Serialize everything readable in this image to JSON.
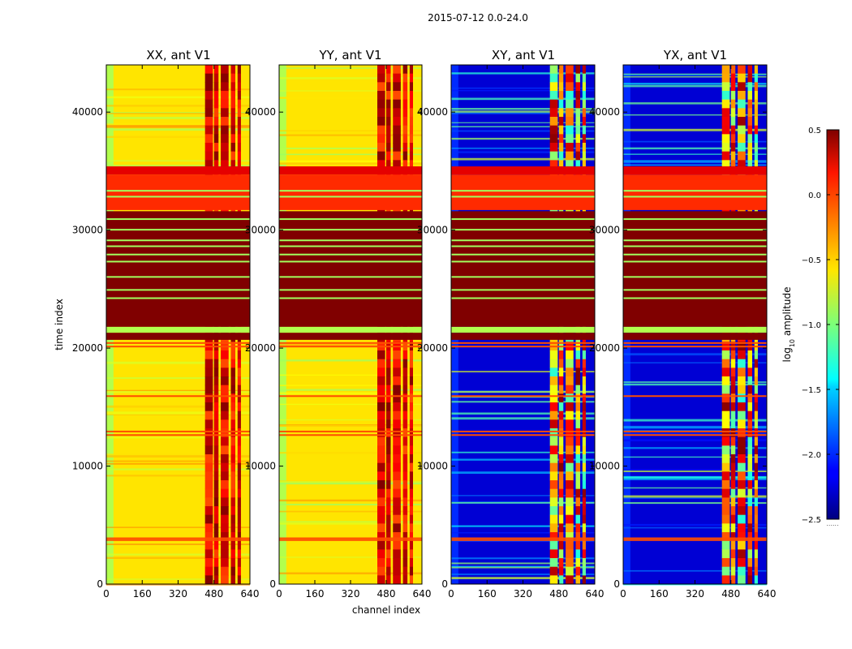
{
  "figure": {
    "suptitle": "2015-07-12 0.0-24.0",
    "xlabel": "channel index",
    "ylabel": "time index"
  },
  "chart_data": {
    "type": "heatmap",
    "colormap": "jet",
    "x_ticks": [
      0,
      160,
      320,
      480,
      640
    ],
    "y_ticks": [
      0,
      10000,
      20000,
      30000,
      40000
    ],
    "xlim": [
      0,
      640
    ],
    "ylim": [
      0,
      44000
    ],
    "panels": [
      {
        "title": "XX, ant V1",
        "kind": "parallel"
      },
      {
        "title": "YY, ant V1",
        "kind": "parallel"
      },
      {
        "title": "XY, ant V1",
        "kind": "cross"
      },
      {
        "title": "YX, ant V1",
        "kind": "cross"
      }
    ],
    "time_bands": [
      {
        "from": 34700,
        "to": 35400,
        "level": 0.2
      },
      {
        "from": 31700,
        "to": 34700,
        "level": 0.0
      },
      {
        "from": 21800,
        "to": 31600,
        "level": 0.5
      },
      {
        "from": 21300,
        "to": 21800,
        "level": -0.85
      },
      {
        "from": 20700,
        "to": 21300,
        "level": 0.5
      }
    ],
    "band_lines": [
      24300,
      25000,
      26100,
      27400,
      28000,
      28700,
      29200,
      30100,
      31000,
      32900,
      33400
    ],
    "rfi_columns": [
      {
        "from": 440,
        "to": 475
      },
      {
        "from": 480,
        "to": 500
      },
      {
        "from": 510,
        "to": 545
      },
      {
        "from": 555,
        "to": 575
      },
      {
        "from": 585,
        "to": 600
      }
    ],
    "colorbar": {
      "label": "log10 amplitude",
      "label_main": "log",
      "label_sub": "10",
      "label_rest": " amplitude",
      "range": [
        -2.5,
        0.5
      ],
      "ticks": [
        "0.5",
        "0.0",
        "−0.5",
        "−1.0",
        "−1.5",
        "−2.0",
        "−2.5"
      ],
      "tick_values": [
        0.5,
        0.0,
        -0.5,
        -1.0,
        -1.5,
        -2.0,
        -2.5
      ],
      "footer": "......"
    }
  }
}
